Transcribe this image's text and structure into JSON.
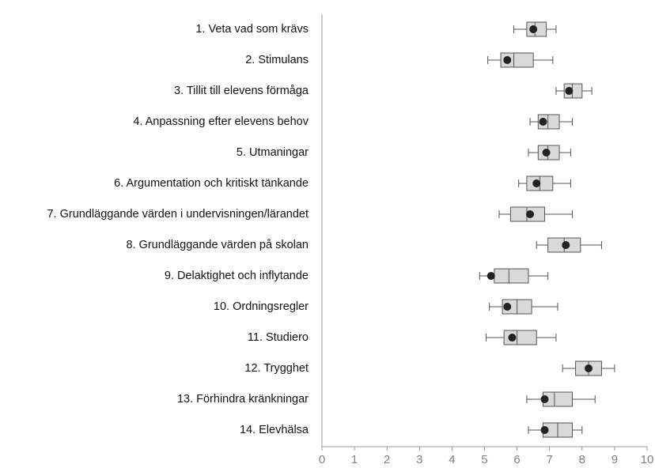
{
  "chart_data": {
    "type": "box",
    "categories": [
      "1. Veta vad som krävs",
      "2. Stimulans",
      "3. Tillit till elevens förmåga",
      "4. Anpassning efter elevens behov",
      "5. Utmaningar",
      "6. Argumentation och kritiskt tänkande",
      "7. Grundläggande värden i undervisningen/lärandet",
      "8. Grundläggande värden på skolan",
      "9. Delaktighet och inflytande",
      "10. Ordningsregler",
      "11. Studiero",
      "12. Trygghet",
      "13. Förhindra kränkningar",
      "14. Elevhälsa"
    ],
    "min": [
      5.9,
      5.1,
      7.2,
      6.4,
      6.35,
      6.05,
      5.45,
      6.6,
      4.85,
      5.15,
      5.05,
      7.4,
      6.3,
      6.35
    ],
    "q1": [
      6.3,
      5.5,
      7.45,
      6.65,
      6.65,
      6.3,
      5.8,
      6.95,
      5.3,
      5.55,
      5.6,
      7.8,
      6.8,
      6.8
    ],
    "median": [
      6.55,
      5.9,
      7.7,
      6.95,
      6.95,
      6.7,
      6.3,
      7.45,
      5.75,
      6.0,
      6.0,
      8.2,
      7.15,
      7.25
    ],
    "q3": [
      6.9,
      6.5,
      8.0,
      7.3,
      7.3,
      7.1,
      6.85,
      7.95,
      6.35,
      6.45,
      6.6,
      8.6,
      7.7,
      7.7
    ],
    "max": [
      7.2,
      7.1,
      8.3,
      7.7,
      7.65,
      7.65,
      7.7,
      8.6,
      6.95,
      7.25,
      7.2,
      9.0,
      8.4,
      8.0
    ],
    "mean": [
      6.5,
      5.7,
      7.6,
      6.8,
      6.9,
      6.6,
      6.4,
      7.5,
      5.2,
      5.7,
      5.85,
      8.2,
      6.85,
      6.85
    ],
    "box_color": "#d9d9d9",
    "mean_color": "#222222",
    "xlim": [
      0,
      10
    ],
    "xticks": [
      0,
      1,
      2,
      3,
      4,
      5,
      6,
      7,
      8,
      9,
      10
    ]
  }
}
